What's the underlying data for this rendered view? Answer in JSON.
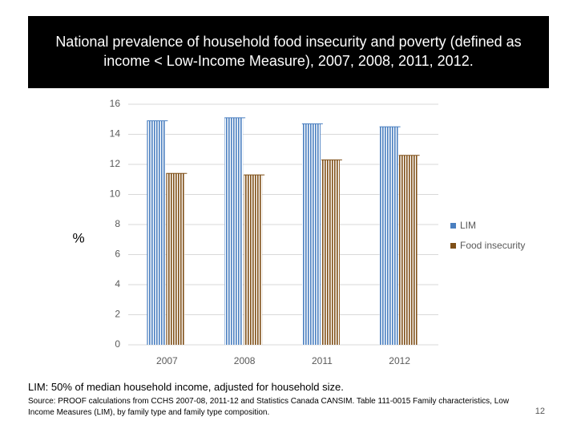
{
  "chart_data": {
    "type": "bar",
    "title": "National prevalence of household food insecurity and poverty (defined as income < Low-Income Measure), 2007, 2008, 2011, 2012.",
    "y_label": "%",
    "categories": [
      "2007",
      "2008",
      "2011",
      "2012"
    ],
    "series": [
      {
        "name": "LIM",
        "color": "#4a7fc0",
        "values": [
          14.9,
          15.1,
          14.7,
          14.5
        ]
      },
      {
        "name": "Food insecurity",
        "color": "#7f4f17",
        "values": [
          11.4,
          11.3,
          12.3,
          12.6
        ]
      }
    ],
    "ylim": [
      0,
      16
    ],
    "yticks": [
      0,
      2,
      4,
      6,
      8,
      10,
      12,
      14,
      16
    ],
    "grid": true,
    "legend": "right"
  },
  "note": "LIM: 50% of median household income, adjusted for household size.",
  "source": "Source: PROOF calculations from CCHS 2007-08, 2011-12 and Statistics Canada CANSIM. Table 111-0015 Family characteristics, Low Income Measures (LIM), by family type and family type composition.",
  "page_number": "12"
}
